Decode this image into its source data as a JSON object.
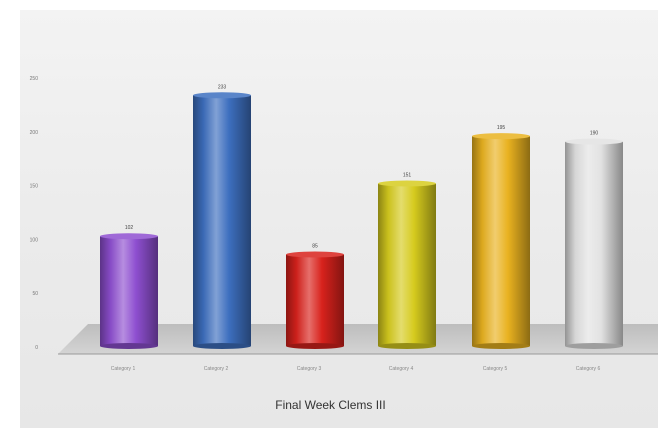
{
  "chart_data": {
    "type": "bar",
    "title": "",
    "xlabel": "Final Week Clems III",
    "ylabel": "",
    "categories": [
      "Category 1",
      "Category 2",
      "Category 3",
      "Category 4",
      "Category 5",
      "Category 6"
    ],
    "values": [
      102,
      233,
      85,
      151,
      195,
      190
    ],
    "yticks": [
      0,
      50,
      100,
      150,
      200,
      250
    ],
    "ylim": [
      0,
      250
    ],
    "grid": false,
    "legend": "none",
    "colors": [
      "#8e4fd0",
      "#3d6fbf",
      "#d8221c",
      "#d6cb1e",
      "#e9b220",
      "#e2e2e2"
    ]
  }
}
